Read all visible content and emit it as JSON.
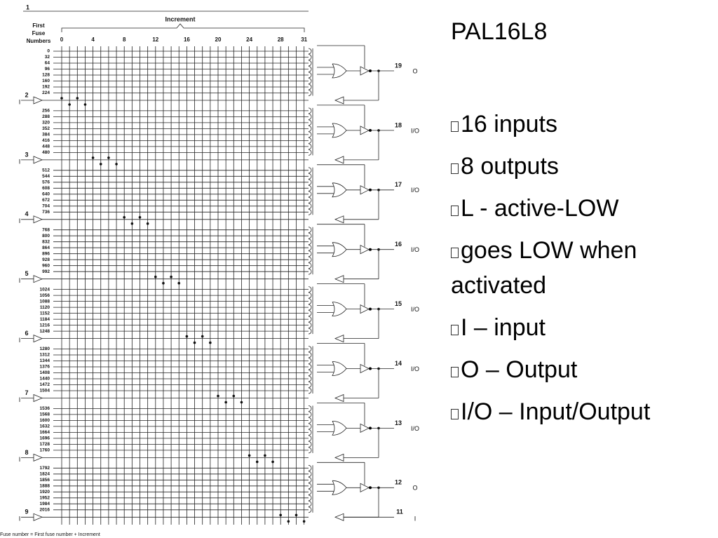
{
  "diagram": {
    "page_marker": "1",
    "increment_label": "Increment",
    "first_fuse_label": [
      "First",
      "Fuse",
      "Numbers"
    ],
    "increment_ticks": [
      0,
      4,
      8,
      12,
      16,
      20,
      24,
      28,
      31
    ],
    "fuse_numbers": [
      0,
      32,
      64,
      96,
      128,
      160,
      192,
      224,
      256,
      288,
      320,
      352,
      384,
      416,
      448,
      480,
      512,
      544,
      576,
      608,
      640,
      672,
      704,
      736,
      768,
      800,
      832,
      864,
      896,
      928,
      960,
      992,
      1024,
      1056,
      1088,
      1120,
      1152,
      1184,
      1216,
      1248,
      1280,
      1312,
      1344,
      1376,
      1408,
      1440,
      1472,
      1504,
      1536,
      1568,
      1600,
      1632,
      1664,
      1696,
      1728,
      1760,
      1792,
      1824,
      1856,
      1888,
      1920,
      1952,
      1984,
      2016
    ],
    "inputs": [
      {
        "pin": "2",
        "label": "I"
      },
      {
        "pin": "3",
        "label": "I"
      },
      {
        "pin": "4",
        "label": "I"
      },
      {
        "pin": "5",
        "label": "I"
      },
      {
        "pin": "6",
        "label": "I"
      },
      {
        "pin": "7",
        "label": "I"
      },
      {
        "pin": "8",
        "label": "I"
      },
      {
        "pin": "9",
        "label": "I"
      }
    ],
    "outputs": [
      {
        "pin": "19",
        "label": "O"
      },
      {
        "pin": "18",
        "label": "I/O"
      },
      {
        "pin": "17",
        "label": "I/O"
      },
      {
        "pin": "16",
        "label": "I/O"
      },
      {
        "pin": "15",
        "label": "I/O"
      },
      {
        "pin": "14",
        "label": "I/O"
      },
      {
        "pin": "13",
        "label": "I/O"
      },
      {
        "pin": "12",
        "label": "O"
      },
      {
        "pin": "11",
        "label": "I"
      }
    ],
    "footer": "Fuse number = First fuse number + Increment"
  },
  "slide": {
    "title": "PAL16L8",
    "bullets": [
      "16 inputs",
      "8 outputs",
      "L - active-LOW",
      "goes LOW when activated",
      "I – input",
      "O – Output",
      "I/O – Input/Output"
    ]
  }
}
